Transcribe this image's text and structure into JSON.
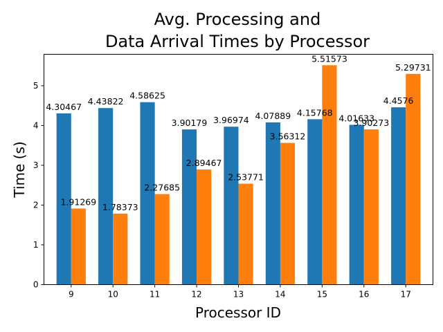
{
  "chart_data": {
    "type": "bar",
    "title_lines": [
      "Avg. Processing and",
      "Data Arrival Times by Processor"
    ],
    "xlabel": "Processor ID",
    "ylabel": "Time (s)",
    "categories": [
      "9",
      "10",
      "11",
      "12",
      "13",
      "14",
      "15",
      "16",
      "17"
    ],
    "series": [
      {
        "values": [
          4.30467,
          4.43822,
          4.58625,
          3.90179,
          3.96974,
          4.07889,
          4.15768,
          4.01633,
          4.4576
        ],
        "labels": [
          "4.30467",
          "4.43822",
          "4.58625",
          "3.90179",
          "3.96974",
          "4.07889",
          "4.15768",
          "4.01633",
          "4.4576"
        ],
        "color": "#1f77b4"
      },
      {
        "values": [
          1.91269,
          1.78373,
          2.27685,
          2.89467,
          2.53771,
          3.56312,
          5.51573,
          3.90273,
          5.29731
        ],
        "labels": [
          "1.91269",
          "1.78373",
          "2.27685",
          "2.89467",
          "2.53771",
          "3.56312",
          "5.51573",
          "3.90273",
          "5.29731"
        ],
        "color": "#ff7f0e"
      }
    ],
    "yticks": [
      "0",
      "1",
      "2",
      "3",
      "4",
      "5"
    ],
    "ylim": [
      0,
      5.79
    ],
    "grid": false,
    "legend": "none"
  }
}
